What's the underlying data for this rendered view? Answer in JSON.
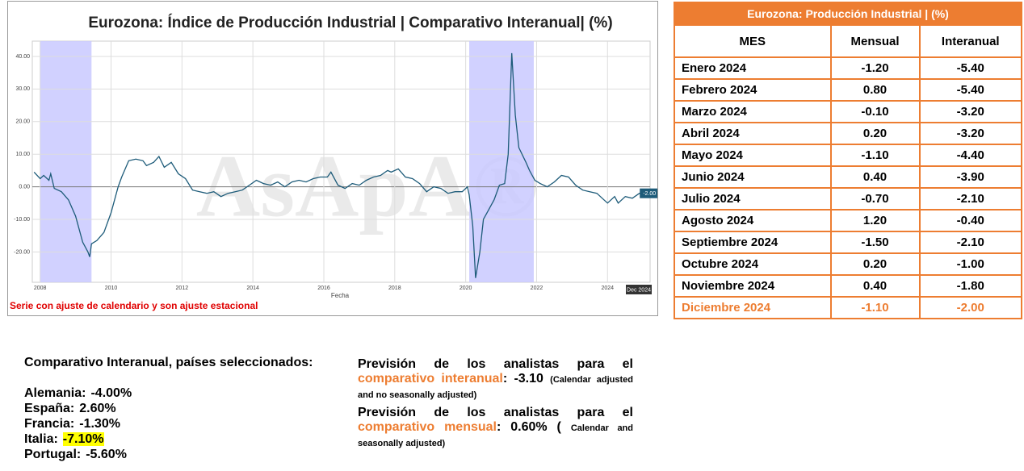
{
  "chart_data": {
    "type": "line",
    "title": "Eurozona: Índice de Producción Industrial | Comparativo Interanual| (%)",
    "x_label": "Fecha",
    "footnote": "Serie con ajuste de calendario y son ajuste estacional",
    "watermark": "AsApA®",
    "end_label": "-2.00",
    "end_date_label": "Dec 2024",
    "xlim": [
      2007.78,
      2025.2
    ],
    "xticks": [
      2008,
      2010,
      2012,
      2014,
      2016,
      2018,
      2020,
      2022,
      2024
    ],
    "ylim": [
      -29.3,
      44.7
    ],
    "yticks": [
      {
        "value": -20,
        "label": "-20.00"
      },
      {
        "value": -10,
        "label": "-10.00"
      },
      {
        "value": 0,
        "label": "0.00"
      },
      {
        "value": 10,
        "label": "10.00"
      },
      {
        "value": 20,
        "label": "20.00"
      },
      {
        "value": 30,
        "label": "30.00"
      },
      {
        "value": 40,
        "label": "40.00"
      }
    ],
    "grid": true,
    "shade_color": "#c9c9ff",
    "shaded": [
      [
        2008.0,
        2009.45
      ],
      [
        2020.1,
        2021.92
      ]
    ],
    "series": [
      {
        "name": "Interanual",
        "color": "#1d5b79",
        "x": [
          2007.83,
          2008.0,
          2008.1,
          2008.25,
          2008.3,
          2008.4,
          2008.6,
          2008.8,
          2009.0,
          2009.2,
          2009.35,
          2009.4,
          2009.45,
          2009.6,
          2009.8,
          2010.0,
          2010.2,
          2010.3,
          2010.5,
          2010.7,
          2010.9,
          2011.0,
          2011.2,
          2011.35,
          2011.5,
          2011.7,
          2011.9,
          2012.1,
          2012.3,
          2012.5,
          2012.7,
          2012.9,
          2013.1,
          2013.3,
          2013.5,
          2013.7,
          2013.9,
          2014.1,
          2014.3,
          2014.5,
          2014.7,
          2014.9,
          2015.1,
          2015.3,
          2015.5,
          2015.7,
          2015.9,
          2016.1,
          2016.2,
          2016.4,
          2016.6,
          2016.8,
          2017.0,
          2017.2,
          2017.4,
          2017.6,
          2017.8,
          2017.9,
          2018.1,
          2018.3,
          2018.5,
          2018.7,
          2018.9,
          2019.1,
          2019.3,
          2019.5,
          2019.7,
          2019.9,
          2020.05,
          2020.1,
          2020.2,
          2020.28,
          2020.4,
          2020.5,
          2020.65,
          2020.8,
          2020.95,
          2021.1,
          2021.2,
          2021.3,
          2021.4,
          2021.5,
          2021.7,
          2021.8,
          2021.95,
          2022.1,
          2022.3,
          2022.5,
          2022.7,
          2022.9,
          2023.1,
          2023.3,
          2023.5,
          2023.7,
          2023.9,
          2024.0,
          2024.2,
          2024.3,
          2024.5,
          2024.7,
          2024.9,
          2025.0
        ],
        "values": [
          4.5,
          2.5,
          3.5,
          2.0,
          4.0,
          -0.5,
          -1.5,
          -4,
          -9,
          -17,
          -20,
          -21.5,
          -17.5,
          -16.5,
          -14,
          -8,
          0,
          3,
          8,
          8.5,
          8,
          6.5,
          7.5,
          9.3,
          6,
          7.5,
          4,
          2.5,
          -1,
          -1.5,
          -2,
          -1.5,
          -3,
          -2,
          -1.5,
          -1,
          0.5,
          2,
          1,
          0.5,
          1.5,
          0,
          1.5,
          2,
          1.5,
          2.5,
          3,
          3,
          4.5,
          0.5,
          -0.5,
          1,
          0.5,
          2,
          3,
          3.5,
          5,
          4.5,
          5.5,
          3,
          2.5,
          1,
          -1.5,
          0,
          -0.5,
          -2,
          -1.5,
          -1.5,
          0,
          -2.5,
          -12,
          -28,
          -20,
          -10,
          -7,
          -4,
          0.5,
          1,
          10,
          41,
          22,
          12,
          7.5,
          5,
          2,
          1,
          0,
          1.5,
          3.5,
          3,
          0.5,
          -1,
          -1.5,
          -2,
          -4,
          -5,
          -3,
          -5,
          -3,
          -3.5,
          -2,
          -2.0
        ]
      }
    ]
  },
  "table": {
    "title": "Eurozona: Producción Industrial | (%)",
    "headers": [
      "MES",
      "Mensual",
      "Interanual"
    ],
    "rows": [
      [
        "Enero 2024",
        "-1.20",
        "-5.40"
      ],
      [
        "Febrero 2024",
        "0.80",
        "-5.40"
      ],
      [
        "Marzo 2024",
        "-0.10",
        "-3.20"
      ],
      [
        "Abril 2024",
        "0.20",
        "-3.20"
      ],
      [
        "Mayo 2024",
        "-1.10",
        "-4.40"
      ],
      [
        "Junio 2024",
        "0.40",
        "-3.90"
      ],
      [
        "Julio 2024",
        "-0.70",
        "-2.10"
      ],
      [
        "Agosto 2024",
        "1.20",
        "-0.40"
      ],
      [
        "Septiembre 2024",
        "-1.50",
        "-2.10"
      ],
      [
        "Octubre 2024",
        "0.20",
        "-1.00"
      ],
      [
        "Noviembre 2024",
        "0.40",
        "-1.80"
      ],
      [
        "Diciembre 2024",
        "-1.10",
        "-2.00"
      ]
    ]
  },
  "countries": {
    "title": "Comparativo Interanual, países seleccionados:",
    "items": [
      [
        "Alemania:",
        "-4.00%"
      ],
      [
        "España:",
        "2.60%"
      ],
      [
        "Francia:",
        "-1.30%"
      ],
      [
        "Italia:",
        "-7.10%"
      ],
      [
        "Portugal:",
        "-5.60%"
      ]
    ]
  },
  "forecasts": [
    {
      "lead": "Previsión de los analistas para el",
      "term": "comparativo interanual",
      "value": ": -3.10",
      "note": "(Calendar adjusted and no seasonally adjusted)"
    },
    {
      "lead": "Previsión de los analistas para el",
      "term": "comparativo mensual",
      "value": ": 0.60% (",
      "note": "Calendar and seasonally adjusted)"
    }
  ]
}
